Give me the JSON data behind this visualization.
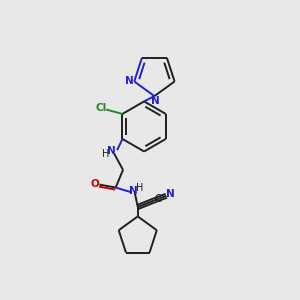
{
  "bg_color": "#e8e8e8",
  "bond_color": "#202020",
  "N_color": "#2020cc",
  "O_color": "#cc0000",
  "Cl_color": "#228822",
  "linewidth": 1.4,
  "figsize": [
    3.0,
    3.0
  ],
  "dpi": 100,
  "xlim": [
    0,
    10
  ],
  "ylim": [
    0,
    10
  ]
}
